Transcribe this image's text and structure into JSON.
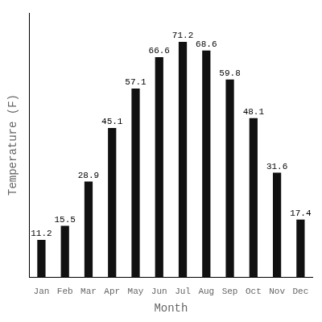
{
  "chart_data": {
    "type": "bar",
    "xlabel": "Month",
    "ylabel": "Temperature (F)",
    "categories": [
      "Jan",
      "Feb",
      "Mar",
      "Apr",
      "May",
      "Jun",
      "Jul",
      "Aug",
      "Sep",
      "Oct",
      "Nov",
      "Dec"
    ],
    "values": [
      11.2,
      15.5,
      28.9,
      45.1,
      57.1,
      66.6,
      71.2,
      68.6,
      59.8,
      48.1,
      31.6,
      17.4
    ],
    "color": "#111111",
    "ylim": [
      0,
      80
    ],
    "grid": false,
    "data_labels": true,
    "tick_labels": "x"
  }
}
